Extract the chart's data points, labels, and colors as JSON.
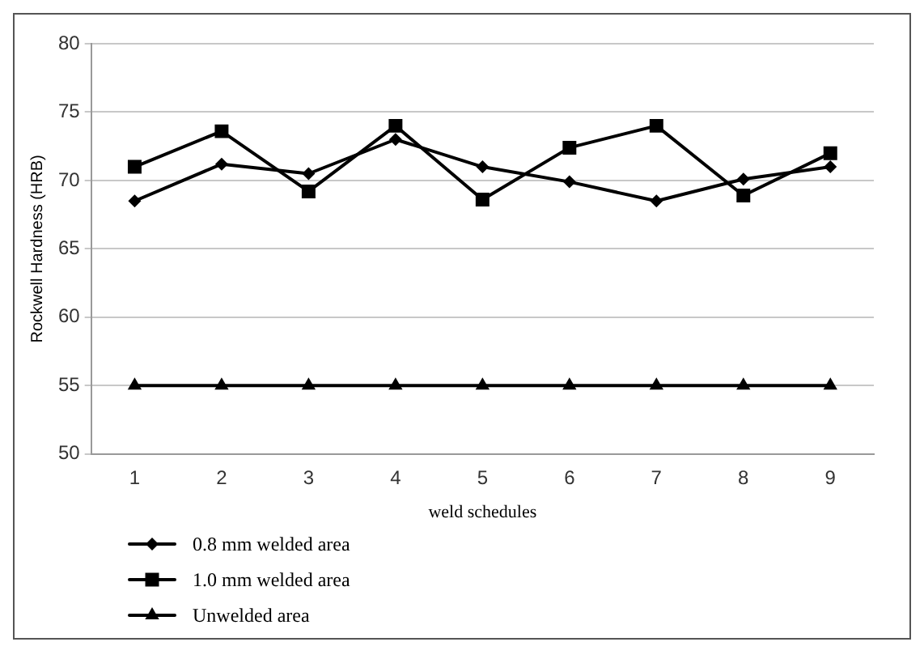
{
  "chart_data": {
    "type": "line",
    "xlabel": "weld schedules",
    "ylabel": "Rockwell Hardness (HRB)",
    "categories": [
      "1",
      "2",
      "3",
      "4",
      "5",
      "6",
      "7",
      "8",
      "9"
    ],
    "series": [
      {
        "name": "0.8 mm welded area",
        "color": "#000000",
        "marker": "diamond",
        "values": [
          68.5,
          71.2,
          70.5,
          73,
          71,
          69.9,
          68.5,
          70.1,
          71
        ]
      },
      {
        "name": "1.0 mm welded area",
        "color": "#000000",
        "marker": "square",
        "values": [
          71,
          73.6,
          69.2,
          74,
          68.6,
          72.4,
          74,
          68.9,
          72
        ]
      },
      {
        "name": "Unwelded area",
        "color": "#000000",
        "marker": "triangle",
        "values": [
          55,
          55,
          55,
          55,
          55,
          55,
          55,
          55,
          55
        ]
      }
    ],
    "ylim": [
      50,
      80
    ],
    "yticks": [
      50,
      55,
      60,
      65,
      70,
      75,
      80
    ],
    "grid": "y",
    "legend": "bottom left"
  }
}
